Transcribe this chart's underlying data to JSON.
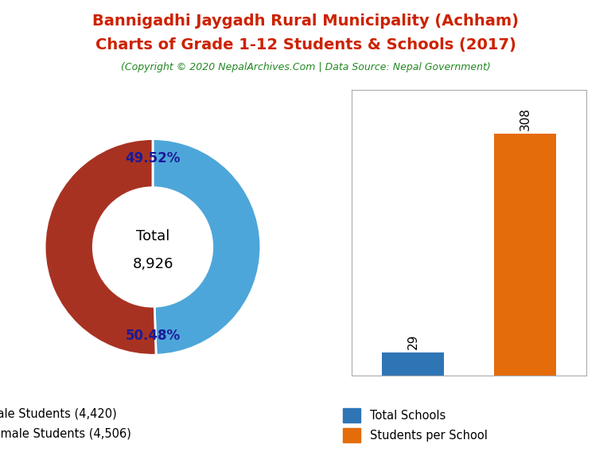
{
  "title_line1": "Bannigadhi Jaygadh Rural Municipality (Achham)",
  "title_line2": "Charts of Grade 1-12 Students & Schools (2017)",
  "subtitle": "(Copyright © 2020 NepalArchives.Com | Data Source: Nepal Government)",
  "title_color": "#cc2200",
  "subtitle_color": "#228822",
  "male_students": 4420,
  "female_students": 4506,
  "total_students": 8926,
  "male_pct": "49.52%",
  "female_pct": "50.48%",
  "male_color": "#4da6d9",
  "female_color": "#a83222",
  "pct_label_color": "#1a1a99",
  "total_schools": 29,
  "students_per_school": 308,
  "bar_blue": "#2e75b6",
  "bar_orange": "#e46c0a",
  "background_color": "#ffffff"
}
